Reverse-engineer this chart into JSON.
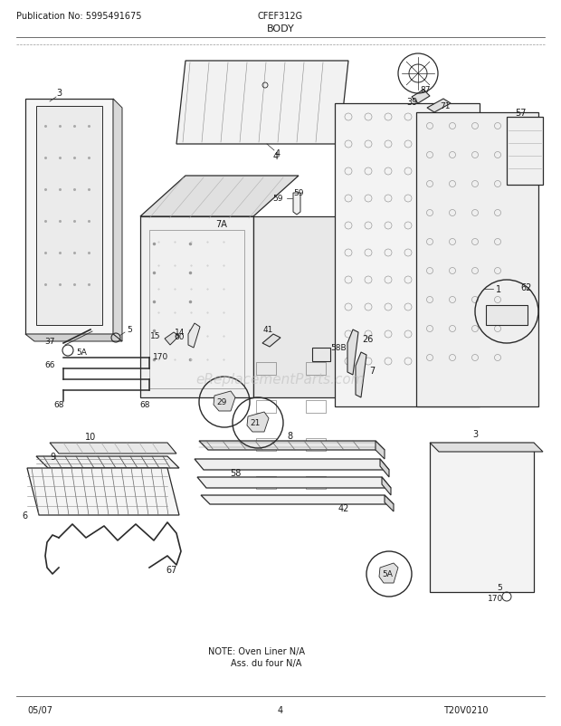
{
  "title": "BODY",
  "pub_no": "Publication No: 5995491675",
  "model": "CFEF312G",
  "date": "05/07",
  "page": "4",
  "diagram_id": "T20V0210",
  "note_line1": "NOTE: Oven Liner N/A",
  "note_line2": "Ass. du four N/A",
  "watermark": "eReplacementParts.com",
  "bg_color": "#ffffff",
  "lc": "#2a2a2a",
  "tc": "#1a1a1a"
}
